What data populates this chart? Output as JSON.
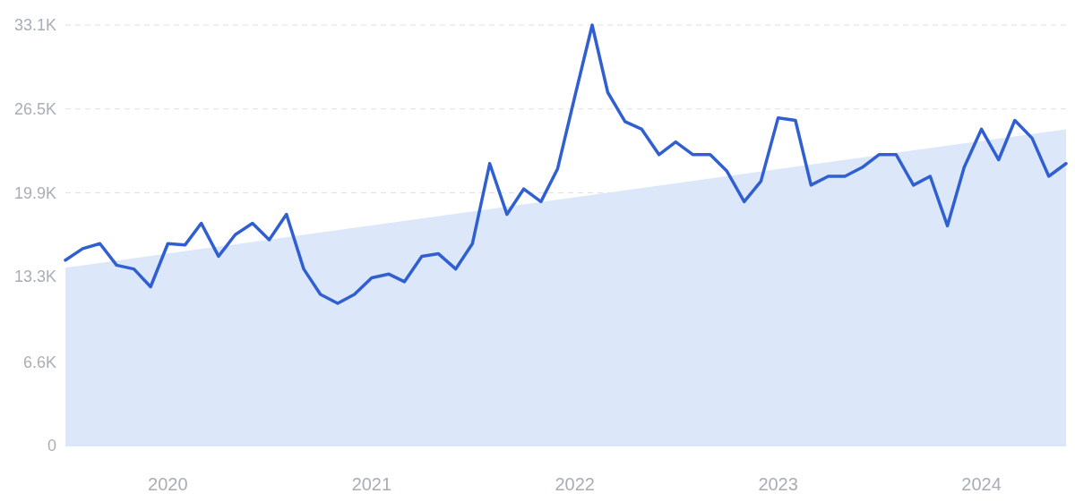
{
  "chart_data": {
    "type": "line",
    "xlim": [
      "2019-07",
      "2024-06"
    ],
    "ylim": [
      0,
      33100
    ],
    "xticks": [
      {
        "value": "2020-01",
        "label": "2020"
      },
      {
        "value": "2021-01",
        "label": "2021"
      },
      {
        "value": "2022-01",
        "label": "2022"
      },
      {
        "value": "2023-01",
        "label": "2023"
      },
      {
        "value": "2024-01",
        "label": "2024"
      }
    ],
    "yticks": [
      0,
      {
        "value": 6600,
        "label": "6.6K"
      },
      {
        "value": 13300,
        "label": "13.3K"
      },
      {
        "value": 19900,
        "label": "19.9K"
      },
      {
        "value": 26500,
        "label": "26.5K"
      },
      {
        "value": 33100,
        "label": "33.1K"
      }
    ],
    "grid": "y",
    "series": [
      {
        "type": "area",
        "color": "#dce8fa",
        "x": [
          "2019-07",
          "2024-06"
        ],
        "values": [
          14000,
          24900
        ]
      },
      {
        "color": "#2f5fd0",
        "x": [
          "2019-07",
          "2019-08",
          "2019-09",
          "2019-10",
          "2019-11",
          "2019-12",
          "2020-01",
          "2020-02",
          "2020-03",
          "2020-04",
          "2020-05",
          "2020-06",
          "2020-07",
          "2020-08",
          "2020-09",
          "2020-10",
          "2020-11",
          "2020-12",
          "2021-01",
          "2021-02",
          "2021-03",
          "2021-04",
          "2021-05",
          "2021-06",
          "2021-07",
          "2021-08",
          "2021-09",
          "2021-10",
          "2021-11",
          "2021-12",
          "2022-01",
          "2022-02",
          "2022-03",
          "2022-04",
          "2022-05",
          "2022-06",
          "2022-07",
          "2022-08",
          "2022-09",
          "2022-10",
          "2022-11",
          "2022-12",
          "2023-01",
          "2023-02",
          "2023-03",
          "2023-04",
          "2023-05",
          "2023-06",
          "2023-07",
          "2023-08",
          "2023-09",
          "2023-10",
          "2023-11",
          "2023-12",
          "2024-01",
          "2024-02",
          "2024-03",
          "2024-04",
          "2024-05",
          "2024-06"
        ],
        "values": [
          14600,
          15500,
          15900,
          14200,
          13900,
          12500,
          15900,
          15800,
          17500,
          14900,
          16600,
          17500,
          16200,
          18200,
          13900,
          11900,
          11200,
          11900,
          13200,
          13500,
          12900,
          14900,
          15100,
          13900,
          15900,
          22200,
          18200,
          20200,
          19200,
          21800,
          27500,
          33100,
          27800,
          25500,
          24900,
          22900,
          23900,
          22900,
          22900,
          21600,
          19200,
          20800,
          25800,
          25600,
          20500,
          21200,
          21200,
          21900,
          22900,
          22900,
          20500,
          21200,
          17300,
          21900,
          24900,
          22500,
          25600,
          24200,
          21200,
          22200
        ]
      }
    ]
  }
}
